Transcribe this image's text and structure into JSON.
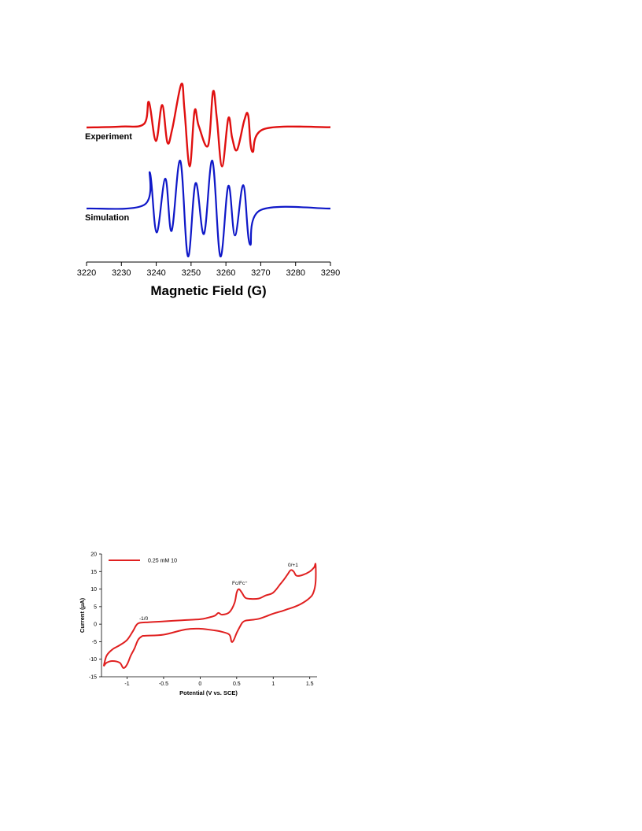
{
  "chart_data": [
    {
      "type": "line",
      "xlabel": "Magnetic Field (G)",
      "ylabel": "",
      "xlim": [
        3220,
        3290
      ],
      "x_ticks": [
        "3220",
        "3230",
        "3240",
        "3250",
        "3260",
        "3270",
        "3280",
        "3290"
      ],
      "grid": false,
      "series": [
        {
          "name": "Experiment",
          "color": "#e01010",
          "x_points": [
            3220,
            3230,
            3236.5,
            3237.9,
            3239.9,
            3241.7,
            3243.2,
            3244.6,
            3247.2,
            3248.1,
            3249.6,
            3251.0,
            3252.2,
            3254.9,
            3256.3,
            3257.4,
            3258.9,
            3260.7,
            3261.8,
            3263.2,
            3265.3,
            3266.4,
            3267.6,
            3271,
            3290
          ],
          "y_values": [
            0.0,
            0.03,
            0.12,
            0.85,
            -0.45,
            0.75,
            -0.5,
            -0.05,
            1.45,
            0.6,
            -1.3,
            0.55,
            0.05,
            -0.6,
            1.2,
            0.3,
            -1.3,
            0.31,
            -0.35,
            -0.75,
            0.25,
            0.4,
            -0.81,
            -0.05,
            0.01
          ]
        },
        {
          "name": "Simulation",
          "color": "#0f18c8",
          "x_points": [
            3220,
            3236.5,
            3238.2,
            3240.1,
            3242.6,
            3244.4,
            3246.9,
            3249.1,
            3251.3,
            3253.7,
            3256.1,
            3258.4,
            3260.7,
            3262.6,
            3265.0,
            3266.9,
            3270,
            3290
          ],
          "y_values": [
            0.0,
            0.12,
            1.2,
            -0.8,
            1.0,
            -0.75,
            1.6,
            -1.6,
            0.85,
            -0.85,
            1.6,
            -1.6,
            0.76,
            -0.9,
            0.78,
            -1.2,
            -0.05,
            0.0
          ]
        }
      ],
      "series_labels": [
        "Experiment",
        "Simulation"
      ]
    },
    {
      "type": "line",
      "xlabel": "Potential (V vs. SCE)",
      "ylabel": "Current (μA)",
      "xlim": [
        -1.35,
        1.6
      ],
      "ylim": [
        -15,
        20
      ],
      "x_ticks": [
        "-1",
        "-0.5",
        "0",
        "0.5",
        "1",
        "1.5"
      ],
      "y_ticks": [
        "-15",
        "-10",
        "-5",
        "0",
        "5",
        "10",
        "15",
        "20"
      ],
      "legend": {
        "position": "top-left",
        "entries": [
          "0.25 mM 10"
        ]
      },
      "annotations": [
        "-1/0",
        "Fc/Fc⁺",
        "0/+1"
      ],
      "series": [
        {
          "name": "0.25 mM 10",
          "color": "#e02020",
          "x": [
            -1.32,
            -1.28,
            -1.2,
            -1.1,
            -1.0,
            -0.92,
            -0.88,
            -0.84,
            -0.75,
            -0.5,
            -0.25,
            0.0,
            0.1,
            0.2,
            0.25,
            0.3,
            0.4,
            0.47,
            0.5,
            0.53,
            0.57,
            0.62,
            0.7,
            0.8,
            0.9,
            1.0,
            1.1,
            1.15,
            1.2,
            1.24,
            1.28,
            1.32,
            1.4,
            1.5,
            1.56,
            1.58,
            1.58,
            1.55,
            1.5,
            1.4,
            1.3,
            1.2,
            1.1,
            1.0,
            0.9,
            0.8,
            0.7,
            0.62,
            0.58,
            0.55,
            0.5,
            0.46,
            0.43,
            0.4,
            0.3,
            0.2,
            0.0,
            -0.2,
            -0.5,
            -0.75,
            -0.8,
            -0.85,
            -0.9,
            -0.95,
            -1.0,
            -1.05,
            -1.1,
            -1.2,
            -1.28,
            -1.32
          ],
          "y": [
            -12.0,
            -9.0,
            -7.2,
            -6.0,
            -4.5,
            -2.0,
            -0.5,
            0.3,
            0.5,
            0.8,
            1.1,
            1.4,
            1.8,
            2.4,
            3.2,
            2.7,
            3.4,
            6.0,
            9.0,
            10.0,
            9.0,
            7.5,
            7.2,
            7.3,
            8.2,
            9.0,
            11.5,
            12.8,
            14.3,
            15.4,
            15.0,
            13.8,
            14.0,
            15.0,
            16.2,
            17.0,
            12.0,
            9.0,
            7.5,
            6.0,
            5.0,
            4.3,
            3.6,
            3.0,
            2.2,
            1.5,
            1.2,
            1.0,
            0.5,
            -0.5,
            -2.5,
            -4.5,
            -5.0,
            -3.0,
            -2.2,
            -1.8,
            -1.3,
            -1.5,
            -3.0,
            -3.3,
            -3.5,
            -4.5,
            -7.0,
            -9.0,
            -11.5,
            -12.5,
            -11.0,
            -10.5,
            -11.0,
            -12.0
          ]
        }
      ]
    }
  ]
}
